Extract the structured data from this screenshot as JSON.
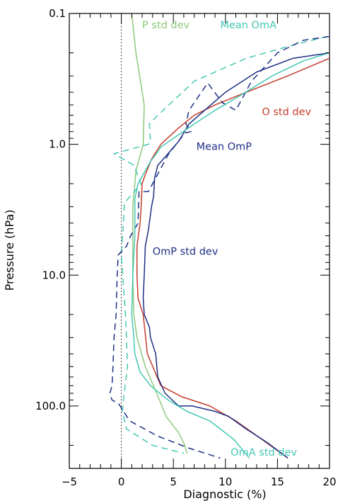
{
  "chart_data": {
    "type": "line",
    "xlabel": "Diagnostic (%)",
    "ylabel": "Pressure (hPa)",
    "xlim": [
      -5,
      20
    ],
    "ylim": [
      300,
      0.1
    ],
    "y_scale": "log",
    "x_ticks": [
      "−5",
      "0",
      "5",
      "10",
      "15",
      "20"
    ],
    "x_tick_values": [
      -5,
      0,
      5,
      10,
      15,
      20
    ],
    "y_ticks": [
      "0.1",
      "1.0",
      "10.0",
      "100.0"
    ],
    "y_tick_values": [
      0.1,
      1,
      10,
      100
    ],
    "zero_line": {
      "x": 0,
      "style": "dotted"
    },
    "grid": false,
    "series": [
      {
        "name": "P std dev",
        "color": "#8dc97a",
        "dash": "solid",
        "label_text": "P std dev",
        "label_at": [
          2.0,
          0.13
        ],
        "x": [
          1.0,
          1.4,
          2.2,
          2.1,
          1.4,
          1.1,
          1.1,
          1.2,
          1.5,
          2.3,
          3.4,
          4.3,
          5.5,
          6.1,
          6.3
        ],
        "y": [
          0.1,
          0.2,
          0.5,
          1.0,
          1.6,
          3.0,
          10.0,
          20.0,
          30.0,
          50.0,
          80.0,
          120.0,
          160.0,
          200.0,
          230.0
        ]
      },
      {
        "name": "Mean OmA",
        "color": "#45c7b3",
        "dash": "dashed",
        "label_text": "Mean OmA",
        "label_at": [
          9.5,
          0.13
        ],
        "x": [
          19.8,
          17.0,
          12.0,
          7.0,
          3.5,
          2.7,
          2.8,
          2.6,
          -0.7,
          1.2,
          1.9,
          0.3,
          0.2,
          0.0,
          0.4,
          0.6,
          0.2,
          0.1,
          0.5,
          3.0,
          6.0
        ],
        "y": [
          0.15,
          0.17,
          0.22,
          0.33,
          0.6,
          0.7,
          0.95,
          1.0,
          1.18,
          1.45,
          2.0,
          2.8,
          4.0,
          7.0,
          20.0,
          50.0,
          90.0,
          110.0,
          150.0,
          200.0,
          230.0
        ]
      },
      {
        "name": "O std dev",
        "color": "#c43c2c",
        "dash": "solid",
        "label_text": "O std dev",
        "label_at": [
          13.5,
          0.6
        ],
        "x": [
          20.0,
          16.0,
          12.0,
          9.0,
          7.0,
          5.5,
          3.8,
          2.9,
          2.3,
          2.0,
          1.9,
          1.8,
          1.5,
          1.5,
          1.6,
          2.1,
          2.5,
          3.8,
          5.8,
          8.5,
          11.0,
          13.5,
          16.0
        ],
        "y": [
          0.22,
          0.3,
          0.4,
          0.5,
          0.6,
          0.75,
          1.0,
          1.3,
          1.7,
          2.0,
          3.0,
          4.0,
          6.0,
          10.0,
          15.0,
          20.0,
          40.0,
          70.0,
          85.0,
          100.0,
          130.0,
          180.0,
          250.0
        ]
      },
      {
        "name": "Mean OmP",
        "color": "#1d2f84",
        "dash": "dashed",
        "label_text": "Mean OmP",
        "label_at": [
          7.2,
          1.1
        ],
        "x": [
          20.0,
          17.5,
          15.0,
          12.5,
          11.0,
          9.7,
          8.3,
          6.5,
          6.2,
          6.7,
          6.1,
          4.5,
          2.6,
          1.7,
          1.6,
          0.9,
          0.5,
          -0.3,
          -0.4,
          -0.5,
          -0.7,
          -0.8,
          -0.9,
          -1.1,
          -0.9,
          -0.3,
          0.8,
          3.5,
          6.5,
          9.5
        ],
        "y": [
          0.15,
          0.16,
          0.2,
          0.33,
          0.55,
          0.48,
          0.34,
          0.55,
          0.7,
          0.8,
          0.82,
          1.2,
          2.3,
          2.3,
          4.0,
          5.0,
          6.0,
          7.0,
          10.0,
          20.0,
          30.0,
          50.0,
          70.0,
          80.0,
          90.0,
          95.0,
          130.0,
          170.0,
          210.0,
          250.0
        ]
      },
      {
        "name": "OmP std dev",
        "color": "#1d2f84",
        "dash": "solid",
        "label_text": "OmP std dev",
        "label_at": [
          3.0,
          7.0
        ],
        "x": [
          20.0,
          16.5,
          13.0,
          10.0,
          8.0,
          6.5,
          5.5,
          4.4,
          3.5,
          3.2,
          3.1,
          2.9,
          2.6,
          2.3,
          2.2,
          2.1,
          2.2,
          2.7,
          2.8,
          3.3,
          3.5,
          4.2,
          5.5,
          6.8,
          9.0,
          10.3,
          12.0,
          14.0,
          16.0
        ],
        "y": [
          0.2,
          0.22,
          0.28,
          0.4,
          0.55,
          0.7,
          0.95,
          1.2,
          1.45,
          1.8,
          2.5,
          3.0,
          4.5,
          6.0,
          10.0,
          15.0,
          20.0,
          25.0,
          30.0,
          40.0,
          60.0,
          80.0,
          100.0,
          100.0,
          110.0,
          120.0,
          150.0,
          190.0,
          250.0
        ]
      },
      {
        "name": "OmA std dev",
        "color": "#45c7b3",
        "dash": "solid",
        "label_text": "OmA std dev",
        "label_at": [
          10.5,
          240.0
        ],
        "x": [
          20.0,
          17.5,
          14.5,
          11.5,
          9.0,
          7.0,
          5.0,
          3.8,
          3.3,
          2.8,
          2.1,
          1.6,
          1.3,
          1.3,
          1.3,
          1.1,
          1.0,
          1.2,
          1.3,
          1.8,
          2.8,
          4.5,
          6.3,
          8.5,
          10.8,
          12.3
        ],
        "y": [
          0.2,
          0.23,
          0.3,
          0.42,
          0.55,
          0.7,
          0.9,
          1.05,
          1.2,
          1.35,
          1.7,
          2.0,
          2.6,
          3.5,
          5.0,
          10.0,
          20.0,
          30.0,
          40.0,
          55.0,
          70.0,
          90.0,
          110.0,
          130.0,
          180.0,
          250.0
        ]
      }
    ]
  }
}
